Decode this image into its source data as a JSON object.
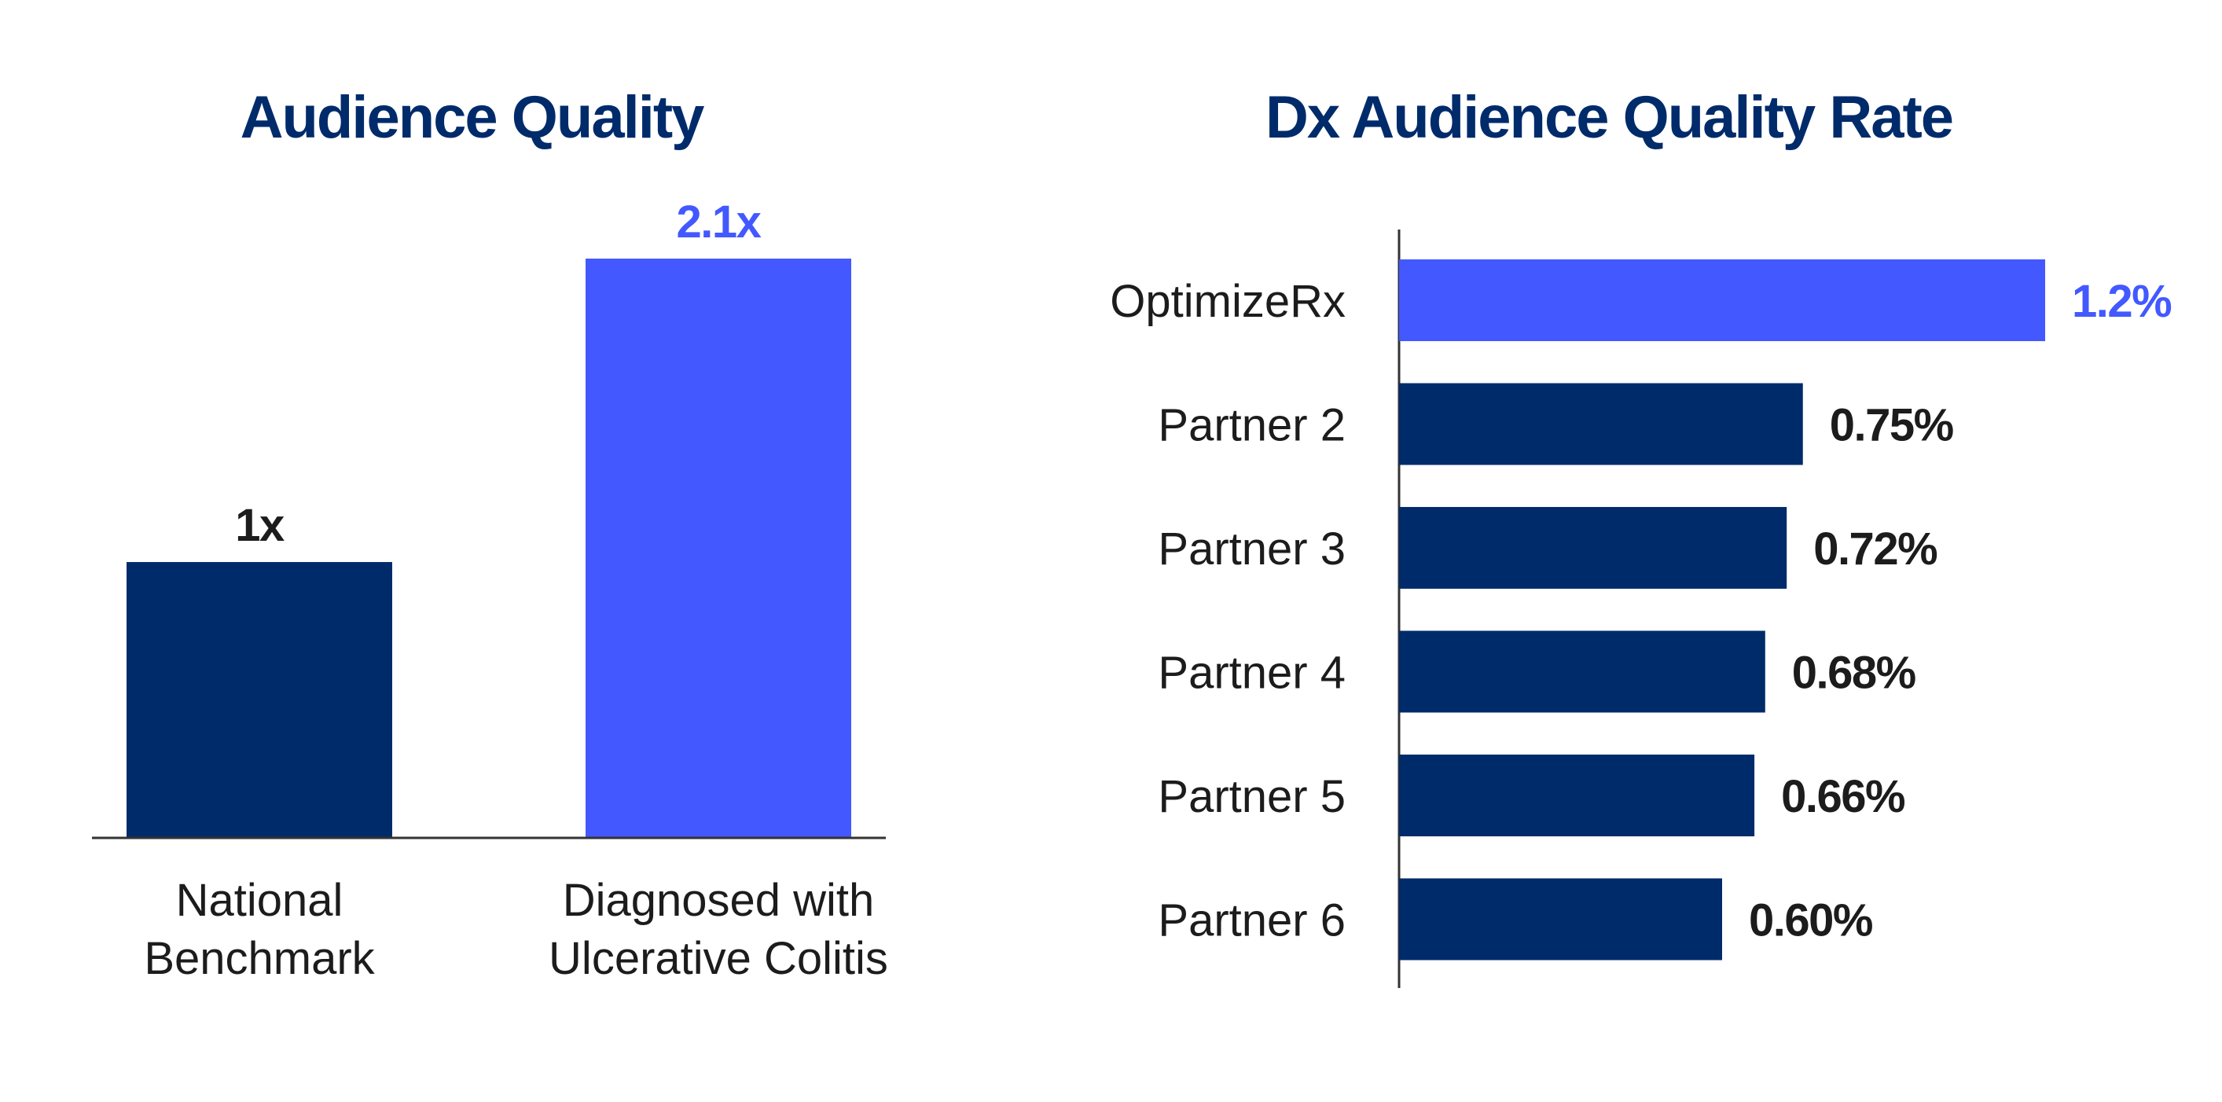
{
  "colors": {
    "dark_navy": "#002B6B",
    "bright_blue": "#4359FF",
    "text_dark": "#1C1C1C",
    "axis": "#333333"
  },
  "chart_data": [
    {
      "type": "bar",
      "orientation": "vertical",
      "title": "Audience Quality",
      "categories": [
        [
          "National",
          "Benchmark"
        ],
        [
          "Diagnosed with",
          "Ulcerative Colitis"
        ]
      ],
      "values": [
        1,
        2.1
      ],
      "value_labels": [
        "1x",
        "2.1x"
      ],
      "bar_colors": [
        "#002B6B",
        "#4359FF"
      ],
      "label_colors": [
        "#1C1C1C",
        "#4359FF"
      ],
      "xlabel": "",
      "ylabel": "",
      "ylim": [
        0,
        2.1
      ],
      "grid": false,
      "legend": "none"
    },
    {
      "type": "bar",
      "orientation": "horizontal",
      "title": "Dx Audience Quality Rate",
      "categories": [
        "OptimizeRx",
        "Partner 2",
        "Partner 3",
        "Partner 4",
        "Partner 5",
        "Partner 6"
      ],
      "values": [
        1.2,
        0.75,
        0.72,
        0.68,
        0.66,
        0.6
      ],
      "value_labels": [
        "1.2%",
        "0.75%",
        "0.72%",
        "0.68%",
        "0.66%",
        "0.60%"
      ],
      "bar_colors": [
        "#4359FF",
        "#002B6B",
        "#002B6B",
        "#002B6B",
        "#002B6B",
        "#002B6B"
      ],
      "label_colors": [
        "#4359FF",
        "#1C1C1C",
        "#1C1C1C",
        "#1C1C1C",
        "#1C1C1C",
        "#1C1C1C"
      ],
      "xlabel": "",
      "ylabel": "",
      "xlim": [
        0,
        1.2
      ],
      "grid": false,
      "legend": "none"
    }
  ]
}
